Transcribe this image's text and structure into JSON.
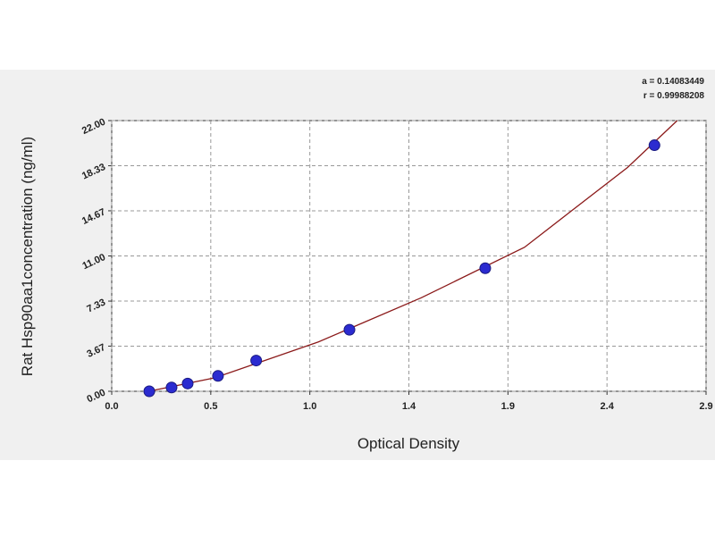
{
  "chart_data": {
    "type": "scatter",
    "x_label": "Optical Density",
    "y_label": "Rat Hsp90aa1concentration (ng/ml)",
    "annotations": [
      "a = 0.14083449",
      "r = 0.99988208"
    ],
    "x": [
      0.182,
      0.29,
      0.368,
      0.515,
      0.7,
      1.152,
      1.81,
      2.63
    ],
    "values": [
      0,
      0.31,
      0.63,
      1.25,
      2.5,
      5,
      10,
      20
    ],
    "color": "#2b2bd0",
    "fit_curve": {
      "color": "#8b1a1a",
      "x": [
        0.18,
        0.5,
        1.0,
        1.5,
        2.0,
        2.5,
        2.74
      ],
      "y": [
        0,
        1.1,
        4.0,
        7.6,
        11.7,
        18.2,
        22.0
      ]
    },
    "xlim": [
      0,
      2.88
    ],
    "ylim": [
      0,
      22
    ],
    "xticks": [
      {
        "value": 0,
        "label": "0.0"
      },
      {
        "value": 0.48,
        "label": "0.5"
      },
      {
        "value": 0.96,
        "label": "1.0"
      },
      {
        "value": 1.44,
        "label": "1.4"
      },
      {
        "value": 1.92,
        "label": "1.9"
      },
      2.4,
      {
        "value": 2.88,
        "label": "2.9"
      }
    ],
    "yticks": [
      {
        "value": 0,
        "label": "0.00"
      },
      3.67,
      7.33,
      {
        "value": 11,
        "label": "11.00"
      },
      14.67,
      18.33,
      {
        "value": 22,
        "label": "22.00"
      }
    ],
    "grid": true
  }
}
